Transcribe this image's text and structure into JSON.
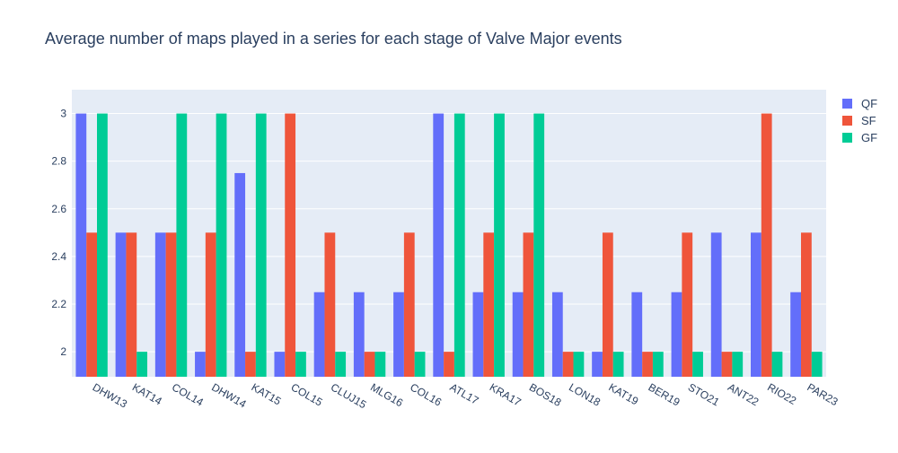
{
  "chart_data": {
    "type": "bar",
    "title": "Average number of maps played in a series for each stage of Valve Major events",
    "xlabel": "",
    "ylabel": "",
    "ylim": [
      1.895,
      3.1
    ],
    "yticks": [
      2,
      2.2,
      2.4,
      2.6,
      2.8,
      3
    ],
    "ytick_labels": [
      "2",
      "2.2",
      "2.4",
      "2.6",
      "2.8",
      "3"
    ],
    "grid": true,
    "legend_position": "top-right",
    "categories": [
      "DHW13",
      "KAT14",
      "COL14",
      "DHW14",
      "KAT15",
      "COL15",
      "CLUJ15",
      "MLG16",
      "COL16",
      "ATL17",
      "KRA17",
      "BOS18",
      "LON18",
      "KAT19",
      "BER19",
      "STO21",
      "ANT22",
      "RIO22",
      "PAR23"
    ],
    "series": [
      {
        "name": "QF",
        "color": "#636efa",
        "values": [
          3,
          2.5,
          2.5,
          2,
          2.75,
          2,
          2.25,
          2.25,
          2.25,
          3,
          2.25,
          2.25,
          2.25,
          2,
          2.25,
          2.25,
          2.5,
          2.5,
          2.25
        ]
      },
      {
        "name": "SF",
        "color": "#ef553b",
        "values": [
          2.5,
          2.5,
          2.5,
          2.5,
          2,
          3,
          2.5,
          2,
          2.5,
          2,
          2.5,
          2.5,
          2,
          2.5,
          2,
          2.5,
          2,
          3,
          2.5
        ]
      },
      {
        "name": "GF",
        "color": "#00cc96",
        "values": [
          3,
          2,
          3,
          3,
          3,
          2,
          2,
          2,
          2,
          3,
          3,
          3,
          2,
          2,
          2,
          2,
          2,
          2,
          2
        ]
      }
    ]
  }
}
